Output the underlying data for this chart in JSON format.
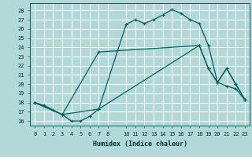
{
  "xlabel": "Humidex (Indice chaleur)",
  "bg_color": "#b2d8d8",
  "grid_color": "#ffffff",
  "line_color": "#006060",
  "xlim": [
    -0.5,
    23.5
  ],
  "ylim": [
    15.5,
    28.8
  ],
  "xticks": [
    0,
    1,
    2,
    3,
    4,
    5,
    6,
    7,
    8,
    10,
    11,
    12,
    13,
    14,
    15,
    16,
    17,
    18,
    19,
    20,
    21,
    22,
    23
  ],
  "yticks": [
    16,
    17,
    18,
    19,
    20,
    21,
    22,
    23,
    24,
    25,
    26,
    27,
    28
  ],
  "line1_x": [
    0,
    1,
    2,
    3,
    4,
    5,
    6,
    7,
    10,
    11,
    12,
    13,
    14,
    15,
    16,
    17,
    18,
    19,
    20,
    21,
    22,
    23
  ],
  "line1_y": [
    18.0,
    17.7,
    17.2,
    16.7,
    16.0,
    16.0,
    16.5,
    17.3,
    26.5,
    27.0,
    26.6,
    27.0,
    27.5,
    28.1,
    27.7,
    27.0,
    26.6,
    24.2,
    20.2,
    19.8,
    19.5,
    18.3
  ],
  "line2_x": [
    0,
    3,
    7,
    18,
    19,
    20,
    21,
    22,
    23
  ],
  "line2_y": [
    18.0,
    16.7,
    23.5,
    24.2,
    21.7,
    20.2,
    21.7,
    20.0,
    18.3
  ],
  "line3_x": [
    0,
    3,
    7,
    18,
    19,
    20,
    21,
    22,
    23
  ],
  "line3_y": [
    18.0,
    16.7,
    17.3,
    24.2,
    21.7,
    20.2,
    21.7,
    20.0,
    18.3
  ]
}
